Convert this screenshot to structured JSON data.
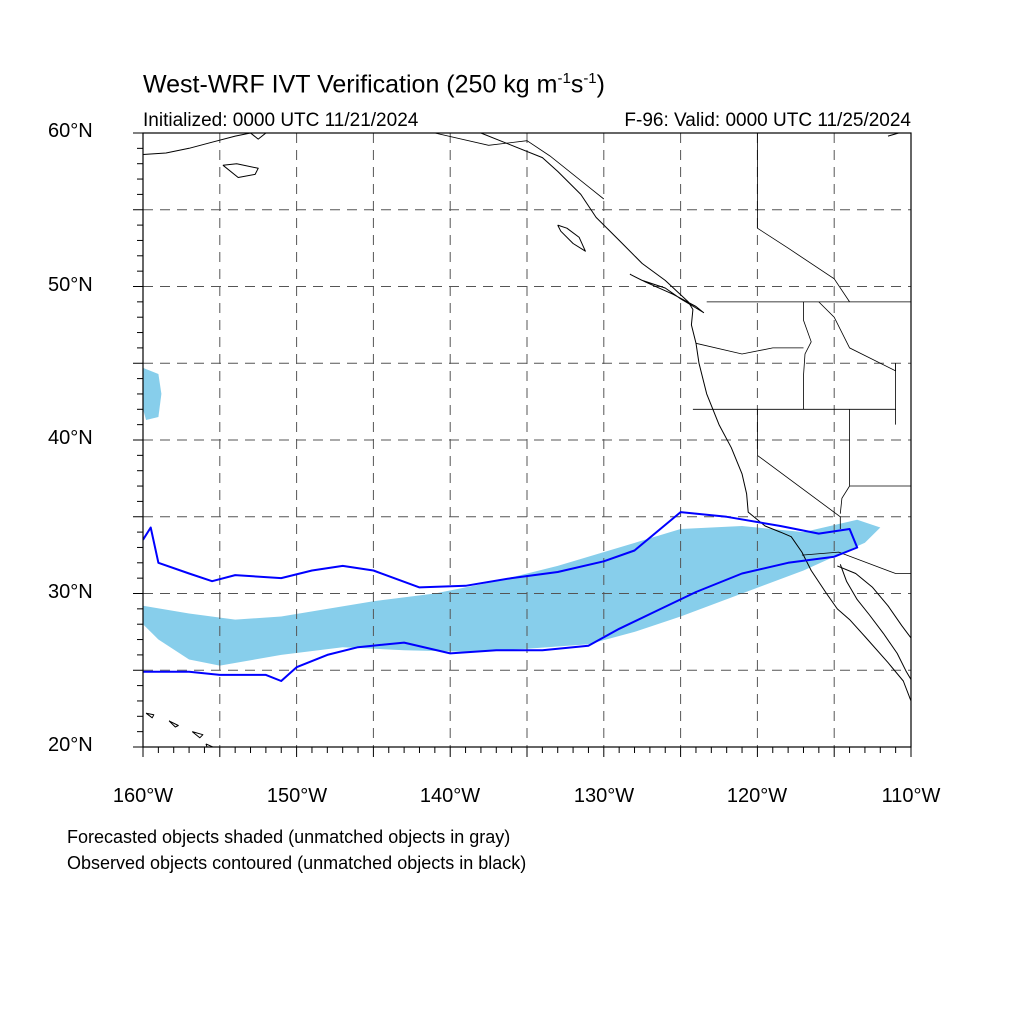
{
  "title": {
    "main": "West-WRF IVT Verification (250 kg m",
    "exp1": "-1",
    "mid": "s",
    "exp2": "-1",
    "close": ")"
  },
  "initialized": "Initialized: 0000 UTC 11/21/2024",
  "valid": "F-96: Valid: 0000 UTC 11/25/2024",
  "lat_labels": [
    "60°N",
    "50°N",
    "40°N",
    "30°N",
    "20°N"
  ],
  "lon_labels": [
    "160°W",
    "150°W",
    "140°W",
    "130°W",
    "120°W",
    "110°W"
  ],
  "notes": [
    "Forecasted objects shaded (unmatched objects in gray)",
    "Observed objects contoured (unmatched objects in black)"
  ],
  "map": {
    "extent": {
      "lon_min": -160,
      "lon_max": -110,
      "lat_min": 20,
      "lat_max": 60
    },
    "gridline_spacing_deg": 5,
    "colors": {
      "forecast_fill": "#87ceeb",
      "observed_contour": "#0000ff",
      "coastline": "#000000",
      "gridline": "#555555"
    },
    "forecast_objects": [
      {
        "name": "main-ar-forecast",
        "lon": [
          -160,
          -157,
          -154,
          -151,
          -148,
          -145,
          -141,
          -137,
          -133,
          -129,
          -125,
          -121,
          -117,
          -113.5,
          -112,
          -113,
          -117,
          -121,
          -125,
          -128,
          -131,
          -135,
          -139,
          -143,
          -147,
          -151,
          -155,
          -157,
          -159,
          -160
        ],
        "lat": [
          29.2,
          28.7,
          28.3,
          28.5,
          29,
          29.5,
          30,
          30.8,
          31.8,
          33,
          34.2,
          34.4,
          34,
          34.8,
          34.3,
          33.3,
          31.5,
          30,
          28.5,
          27.5,
          26.7,
          26.4,
          26.2,
          26.3,
          26.5,
          26,
          25.3,
          25.7,
          27,
          28
        ]
      },
      {
        "name": "small-forecast-north",
        "lon": [
          -160,
          -159,
          -158.8,
          -159,
          -159.8,
          -160
        ],
        "lat": [
          44.7,
          44.3,
          43,
          41.5,
          41.3,
          42
        ]
      }
    ],
    "observed_objects": [
      {
        "name": "main-ar-observed",
        "lon": [
          -160,
          -159.5,
          -159,
          -157,
          -155.5,
          -154,
          -151,
          -149,
          -147,
          -145,
          -142,
          -139,
          -136,
          -133,
          -130,
          -128,
          -125,
          -122,
          -118.5,
          -116,
          -114,
          -113.5,
          -115,
          -118,
          -121,
          -124,
          -126.5,
          -129,
          -131,
          -134,
          -137,
          -140,
          -143,
          -146,
          -148,
          -150,
          -151,
          -152,
          -155,
          -157,
          -160
        ],
        "lat": [
          33.5,
          34.3,
          32,
          31.3,
          30.8,
          31.2,
          31,
          31.5,
          31.8,
          31.5,
          30.4,
          30.5,
          31,
          31.4,
          32.1,
          32.8,
          35.3,
          35,
          34.4,
          33.9,
          34.2,
          33,
          32.4,
          32,
          31.3,
          30.1,
          28.9,
          27.7,
          26.6,
          26.3,
          26.3,
          26.1,
          26.8,
          26.5,
          26,
          25.2,
          24.3,
          24.7,
          24.7,
          24.9,
          24.9
        ]
      }
    ],
    "coastline_segments": [
      {
        "name": "north-america-west-coast",
        "lon": [
          -138,
          -136,
          -134,
          -133,
          -131.5,
          -130.5,
          -129,
          -127.5,
          -126,
          -124.5,
          -124.2,
          -124.3,
          -124,
          -123.8,
          -123.3,
          -122.5,
          -121.7,
          -121,
          -120.7,
          -120.6,
          -119.5,
          -118.5,
          -117.8,
          -117.1,
          -116.5,
          -115.5,
          -114.8,
          -114,
          -113,
          -111.5,
          -110.5,
          -110
        ],
        "lat": [
          60,
          59.2,
          58.4,
          57.5,
          56,
          54.5,
          53,
          51.5,
          50.4,
          49,
          48.5,
          47.5,
          46.3,
          45,
          43,
          41,
          39.5,
          37.8,
          36.5,
          35.3,
          34.4,
          34,
          33.7,
          32.7,
          31.5,
          30,
          29,
          28.3,
          27.2,
          25.5,
          24.3,
          23
        ]
      },
      {
        "name": "vancouver-island",
        "lon": [
          -128.3,
          -127.5,
          -126,
          -125,
          -124,
          -123.5,
          -124,
          -125.5,
          -127.3,
          -128.3
        ],
        "lat": [
          50.8,
          50.4,
          49.9,
          49.2,
          48.6,
          48.3,
          48.7,
          49.5,
          50.3,
          50.8
        ]
      },
      {
        "name": "haida-gwaii",
        "lon": [
          -133,
          -132.4,
          -131.6,
          -131.2,
          -132,
          -132.8,
          -133
        ],
        "lat": [
          54,
          53.8,
          53.2,
          52.3,
          52.8,
          53.6,
          54
        ]
      },
      {
        "name": "baja-gulf-coast",
        "lon": [
          -114.6,
          -114.2,
          -113.5,
          -112.7,
          -111.8,
          -110.9,
          -110.3,
          -110
        ],
        "lat": [
          31.9,
          30.8,
          29.6,
          28.6,
          27.4,
          26.1,
          24.9,
          24.4
        ]
      },
      {
        "name": "mexico-mainland-gulf-coast",
        "lon": [
          -114.8,
          -113.6,
          -112.5,
          -111.5,
          -110.6,
          -110
        ],
        "lat": [
          31.8,
          31.3,
          30.4,
          29.2,
          27.9,
          27.1
        ]
      },
      {
        "name": "alaska-coast",
        "lon": [
          -160,
          -158.5,
          -157,
          -155.5,
          -154,
          -153,
          -152.5,
          -152
        ],
        "lat": [
          58.6,
          58.7,
          59,
          59.4,
          59.8,
          60,
          59.6,
          60
        ]
      },
      {
        "name": "kodiak-island",
        "lon": [
          -154.8,
          -153.9,
          -152.5,
          -152.7,
          -153.8,
          -154.8
        ],
        "lat": [
          57.9,
          58,
          57.7,
          57.3,
          57.1,
          57.9
        ]
      },
      {
        "name": "hudson-bay-fragment",
        "lon": [
          -111.5,
          -110.8,
          -110
        ],
        "lat": [
          59.8,
          60,
          60
        ]
      },
      {
        "name": "hawaii-oahu",
        "lon": [
          -158.3,
          -157.7,
          -157.9,
          -158.3
        ],
        "lat": [
          21.7,
          21.4,
          21.3,
          21.7
        ]
      },
      {
        "name": "hawaii-maui",
        "lon": [
          -156.8,
          -156.1,
          -156.3,
          -156.8
        ],
        "lat": [
          21,
          20.8,
          20.6,
          21
        ]
      },
      {
        "name": "hawaii-big-island",
        "lon": [
          -155.9,
          -155,
          -154.8,
          -155.5,
          -155.9
        ],
        "lat": [
          20.2,
          19.8,
          19.3,
          19,
          20.2
        ]
      },
      {
        "name": "kauai",
        "lon": [
          -159.8,
          -159.3,
          -159.4,
          -159.8
        ],
        "lat": [
          22.2,
          22.1,
          21.9,
          22.2
        ]
      }
    ],
    "border_segments": [
      {
        "name": "us-canada-border",
        "lon": [
          -123.3,
          -110
        ],
        "lat": [
          49,
          49
        ]
      },
      {
        "name": "us-mexico-border",
        "lon": [
          -117.1,
          -114.7,
          -111,
          -110
        ],
        "lat": [
          32.5,
          32.7,
          31.3,
          31.3
        ]
      },
      {
        "name": "oregon-california-border",
        "lon": [
          -124.2,
          -120,
          -117
        ],
        "lat": [
          42,
          42,
          42
        ]
      },
      {
        "name": "washington-oregon-border",
        "lon": [
          -124,
          -121,
          -119,
          -117
        ],
        "lat": [
          46.3,
          45.6,
          46,
          46
        ]
      },
      {
        "name": "idaho-west-border",
        "lon": [
          -117,
          -117,
          -116.9,
          -116.5,
          -117,
          -117
        ],
        "lat": [
          42,
          44.2,
          45.6,
          46.4,
          47.8,
          49
        ]
      },
      {
        "name": "ca-nv-border",
        "lon": [
          -120,
          -120,
          -114.6,
          -114.6
        ],
        "lat": [
          42,
          39,
          35,
          34.2
        ]
      },
      {
        "name": "nevada-east-border",
        "lon": [
          -114,
          -114,
          -114.5,
          -114.6
        ],
        "lat": [
          42,
          37,
          36.2,
          35.2
        ]
      },
      {
        "name": "az-ut-border",
        "lon": [
          -114,
          -110
        ],
        "lat": [
          37,
          37
        ]
      },
      {
        "name": "idaho-montana-border",
        "lon": [
          -116,
          -115,
          -114,
          -111,
          -111
        ],
        "lat": [
          49,
          48,
          46,
          44.5,
          45
        ]
      },
      {
        "name": "wy-line",
        "lon": [
          -111,
          -111
        ],
        "lat": [
          45,
          41
        ]
      },
      {
        "name": "ut-id-border",
        "lon": [
          -117,
          -111
        ],
        "lat": [
          42,
          42
        ]
      },
      {
        "name": "alaska-canada-border",
        "lon": [
          -141,
          -137.5,
          -135,
          -133.5,
          -131,
          -130
        ],
        "lat": [
          60,
          59.2,
          59.5,
          58.5,
          56.5,
          55.7
        ]
      },
      {
        "name": "bc-alberta-border",
        "lon": [
          -120,
          -120,
          -118,
          -115,
          -114
        ],
        "lat": [
          60,
          53.8,
          52.5,
          50.5,
          49
        ]
      }
    ]
  }
}
